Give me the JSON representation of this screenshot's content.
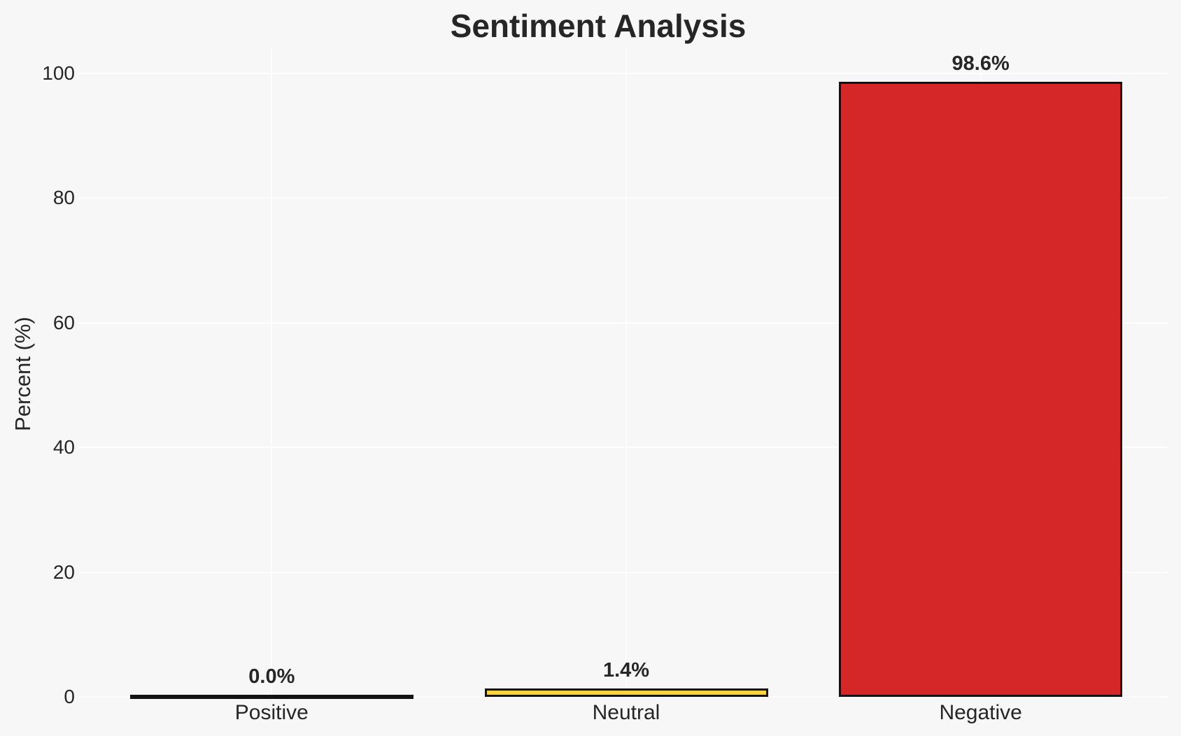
{
  "chart_data": {
    "type": "bar",
    "title": "Sentiment Analysis",
    "xlabel": "",
    "ylabel": "Percent (%)",
    "categories": [
      "Positive",
      "Neutral",
      "Negative"
    ],
    "values": [
      0.0,
      1.4,
      98.6
    ],
    "value_labels": [
      "0.0%",
      "1.4%",
      "98.6%"
    ],
    "bar_colors": [
      null,
      "#fbd53b",
      "#d62728"
    ],
    "bar_edge_color": "#141414",
    "yticks": [
      0,
      20,
      40,
      60,
      80,
      100
    ],
    "ylim": [
      0,
      104
    ],
    "grid": true,
    "grid_color": "#ffffff",
    "legend": "none",
    "background_color": "#f7f7f8",
    "text_color": "#262626"
  }
}
